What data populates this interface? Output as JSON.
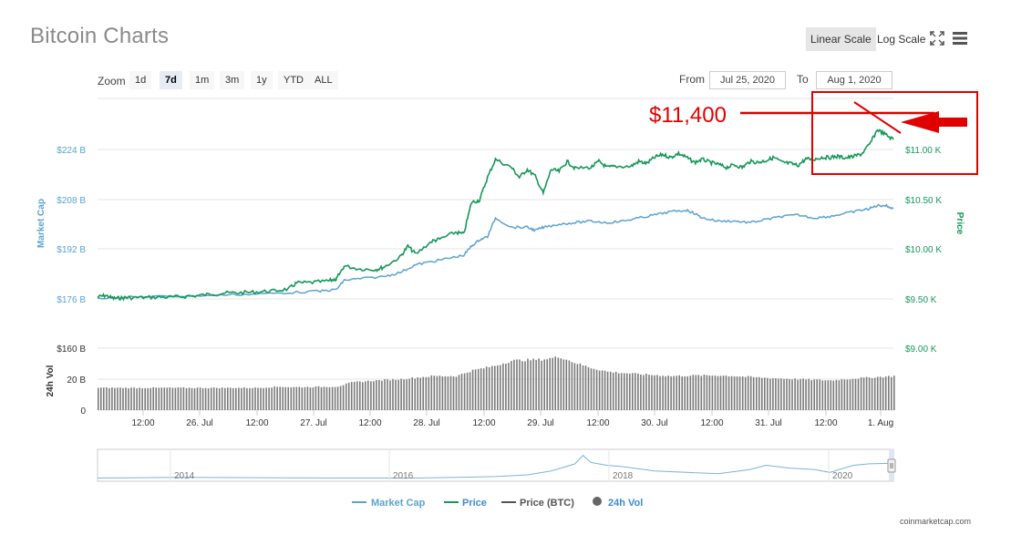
{
  "header": {
    "title": "Bitcoin Charts",
    "linear_scale": "Linear Scale",
    "log_scale": "Log Scale"
  },
  "zoom": {
    "label": "Zoom",
    "buttons": [
      "1d",
      "7d",
      "1m",
      "3m",
      "1y",
      "YTD",
      "ALL"
    ],
    "active": "7d"
  },
  "range": {
    "from_label": "From",
    "from_value": "Jul 25, 2020",
    "to_label": "To",
    "to_value": "Aug 1, 2020"
  },
  "annotation": {
    "text": "$11,400",
    "color": "#e00000"
  },
  "colors": {
    "market_cap": "#5ba3d0",
    "price": "#16975a",
    "volume": "#777777",
    "grid": "#e6e6e6"
  },
  "chart_data": {
    "type": "line",
    "left_axis_label": "Market Cap",
    "right_axis_label": "Price",
    "volume_axis_label": "24h Vol",
    "left_ticks": [
      "$224 B",
      "$208 B",
      "$192 B",
      "$176 B"
    ],
    "right_ticks": [
      "$11.00 K",
      "$10.50 K",
      "$10.00 K",
      "$9.50 K",
      "$9.00 K"
    ],
    "volume_ticks": [
      "$160 B",
      "20 B",
      "0"
    ],
    "x_ticks": [
      "12:00",
      "26. Jul",
      "12:00",
      "27. Jul",
      "12:00",
      "28. Jul",
      "12:00",
      "29. Jul",
      "12:00",
      "30. Jul",
      "12:00",
      "31. Jul",
      "12:00",
      "1. Aug"
    ],
    "price_ylim": [
      9500,
      11000
    ],
    "market_cap_ylim": [
      176,
      224
    ],
    "price_series": {
      "name": "Price",
      "t": [
        0,
        0.01,
        0.02,
        0.03,
        0.04,
        0.06,
        0.08,
        0.1,
        0.12,
        0.14,
        0.16,
        0.18,
        0.2,
        0.22,
        0.24,
        0.25,
        0.27,
        0.29,
        0.3,
        0.3,
        0.31,
        0.33,
        0.35,
        0.36,
        0.38,
        0.39,
        0.4,
        0.42,
        0.43,
        0.45,
        0.46,
        0.47,
        0.48,
        0.49,
        0.5,
        0.52,
        0.53,
        0.54,
        0.55,
        0.56,
        0.57,
        0.58,
        0.59,
        0.6,
        0.62,
        0.63,
        0.64,
        0.65,
        0.67,
        0.68,
        0.69,
        0.7,
        0.71,
        0.72,
        0.73,
        0.74,
        0.75,
        0.76,
        0.77,
        0.78,
        0.79,
        0.8,
        0.81,
        0.82,
        0.83,
        0.84,
        0.85,
        0.86,
        0.87,
        0.88,
        0.89,
        0.9,
        0.91,
        0.92,
        0.93,
        0.94,
        0.95,
        0.96,
        0.97,
        0.98,
        0.99,
        1.0
      ],
      "v": [
        9520,
        9535,
        9505,
        9510,
        9512,
        9515,
        9518,
        9520,
        9530,
        9545,
        9560,
        9562,
        9570,
        9580,
        9600,
        9660,
        9665,
        9680,
        9700,
        9700,
        9830,
        9800,
        9795,
        9820,
        9920,
        10030,
        9950,
        10080,
        10100,
        10170,
        10150,
        10470,
        10490,
        10720,
        10900,
        10820,
        10720,
        10800,
        10730,
        10560,
        10800,
        10780,
        10880,
        10810,
        10820,
        10880,
        10820,
        10830,
        10830,
        10880,
        10860,
        10920,
        10950,
        10920,
        10960,
        10920,
        10870,
        10900,
        10870,
        10850,
        10820,
        10845,
        10820,
        10880,
        10870,
        10890,
        10920,
        10870,
        10860,
        10840,
        10905,
        10900,
        10920,
        10920,
        10930,
        10915,
        10930,
        10955,
        11050,
        11200,
        11150,
        11100
      ]
    },
    "market_cap_series": {
      "name": "Market Cap",
      "t": [
        0,
        0.02,
        0.04,
        0.08,
        0.12,
        0.16,
        0.2,
        0.24,
        0.28,
        0.3,
        0.31,
        0.33,
        0.36,
        0.38,
        0.4,
        0.42,
        0.44,
        0.46,
        0.47,
        0.48,
        0.49,
        0.5,
        0.52,
        0.54,
        0.55,
        0.56,
        0.58,
        0.6,
        0.62,
        0.64,
        0.66,
        0.68,
        0.7,
        0.72,
        0.74,
        0.75,
        0.76,
        0.78,
        0.8,
        0.82,
        0.84,
        0.86,
        0.88,
        0.9,
        0.92,
        0.94,
        0.96,
        0.97,
        0.98,
        0.99,
        1.0
      ],
      "v": [
        176.2,
        176.4,
        176.6,
        176.8,
        177,
        177.3,
        177.6,
        178,
        178.5,
        179,
        182,
        182.5,
        183.2,
        184.5,
        187,
        188,
        189,
        190,
        193,
        195,
        196,
        202,
        199,
        199,
        198,
        199,
        200,
        200.5,
        201,
        200.5,
        201,
        202,
        203,
        204,
        204.5,
        203.5,
        202,
        201,
        201,
        200.5,
        201.5,
        202.5,
        203,
        202,
        202.5,
        203.5,
        204.5,
        205,
        206,
        206,
        205
      ]
    },
    "legend": [
      "Market Cap",
      "Price",
      "Price (BTC)",
      "24h Vol"
    ],
    "navigator_years": [
      "2014",
      "2016",
      "2018",
      "2020"
    ],
    "watermark": "coinmarketcap.com"
  }
}
